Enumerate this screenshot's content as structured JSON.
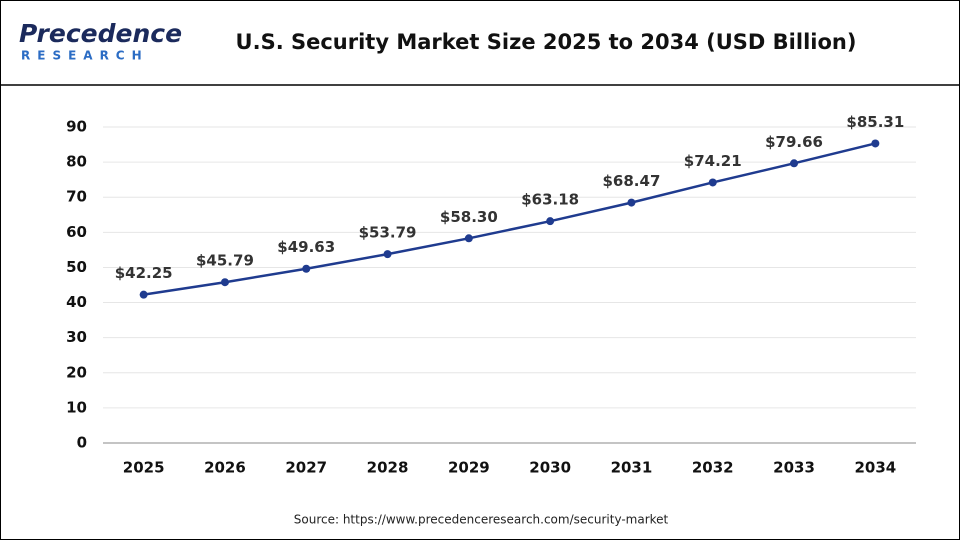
{
  "logo": {
    "name": "Precedence",
    "tagline": "RESEARCH"
  },
  "chart_data": {
    "type": "line",
    "title": "U.S. Security Market Size 2025 to 2034 (USD Billion)",
    "source": "Source: https://www.precedenceresearch.com/security-market",
    "categories": [
      "2025",
      "2026",
      "2027",
      "2028",
      "2029",
      "2030",
      "2031",
      "2032",
      "2033",
      "2034"
    ],
    "values": [
      42.25,
      45.79,
      49.63,
      53.79,
      58.3,
      63.18,
      68.47,
      74.21,
      79.66,
      85.31
    ],
    "value_labels": [
      "$42.25",
      "$45.79",
      "$49.63",
      "$53.79",
      "$58.30",
      "$63.18",
      "$68.47",
      "$74.21",
      "$79.66",
      "$85.31"
    ],
    "color": "#1f3b8f",
    "ylim": [
      0,
      90
    ],
    "yticks": [
      0,
      10,
      20,
      30,
      40,
      50,
      60,
      70,
      80,
      90
    ],
    "grid": true
  }
}
